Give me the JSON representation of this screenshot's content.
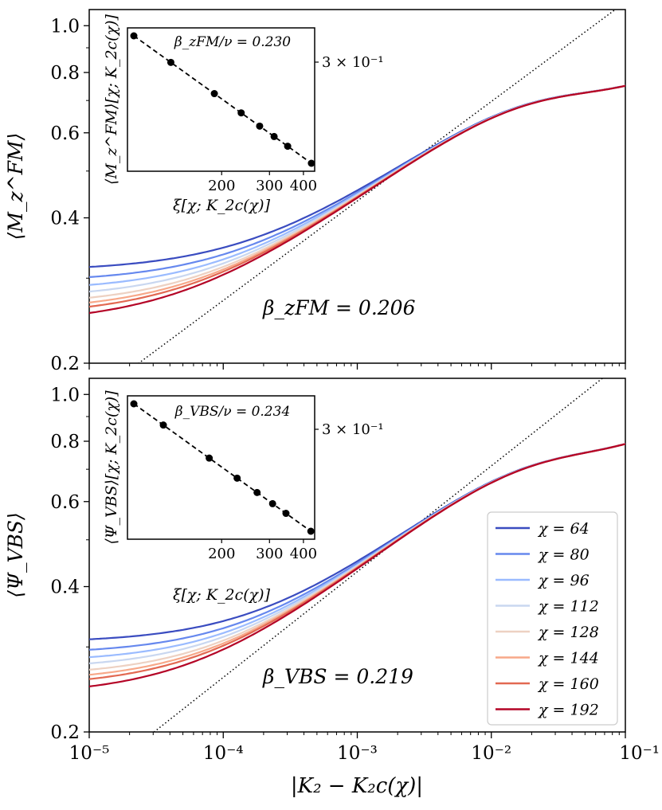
{
  "chart_data": [
    {
      "type": "line",
      "panel": "top",
      "ylabel": "⟨M_z^FM⟩",
      "xlabel": "",
      "xscale": "log",
      "yscale": "log",
      "xlim": [
        1e-05,
        0.1
      ],
      "ylim": [
        0.2,
        1.08
      ],
      "xticks": [
        1e-05,
        0.0001,
        0.001,
        0.01,
        0.1
      ],
      "yticks": [
        0.2,
        0.4,
        0.6,
        0.8,
        1.0
      ],
      "ytick_labels": [
        "0.2",
        "0.4",
        "0.6",
        "0.8",
        "1.0"
      ],
      "annotation": "β_zFM = 0.206",
      "fit_line": {
        "style": "dotted",
        "beta": 0.206,
        "point": [
          0.002,
          0.5
        ]
      },
      "series": [
        {
          "name": "χ = 64",
          "plateau": 0.31
        },
        {
          "name": "χ = 80",
          "plateau": 0.294
        },
        {
          "name": "χ = 96",
          "plateau": 0.282
        },
        {
          "name": "χ = 112",
          "plateau": 0.272
        },
        {
          "name": "χ = 128",
          "plateau": 0.263
        },
        {
          "name": "χ = 144",
          "plateau": 0.256
        },
        {
          "name": "χ = 160",
          "plateau": 0.25
        },
        {
          "name": "χ = 192",
          "plateau": 0.241
        }
      ],
      "inset": {
        "type": "scatter",
        "title": "β_zFM/ν = 0.230",
        "xlabel": "ξ[χ; K_2c(χ)]",
        "ylabel": "⟨M_z^FM⟩[χ; K_2c(χ)]",
        "xticks": [
          200,
          300,
          400
        ],
        "xtick_labels": [
          "200",
          "300",
          "400"
        ],
        "ytick_label": "3 × 10⁻¹",
        "x": [
          95,
          130,
          188,
          236,
          276,
          312,
          350,
          428
        ],
        "fit_style": "dashed"
      }
    },
    {
      "type": "line",
      "panel": "bottom",
      "ylabel": "⟨Ψ_VBS⟩",
      "xlabel": "|K₂ − K₂c(χ)|",
      "xscale": "log",
      "yscale": "log",
      "xlim": [
        1e-05,
        0.1
      ],
      "ylim": [
        0.2,
        1.08
      ],
      "xticks": [
        1e-05,
        0.0001,
        0.001,
        0.01,
        0.1
      ],
      "xtick_labels": [
        "10⁻⁵",
        "10⁻⁴",
        "10⁻³",
        "10⁻²",
        "10⁻¹"
      ],
      "yticks": [
        0.2,
        0.4,
        0.6,
        0.8,
        1.0
      ],
      "ytick_labels": [
        "0.2",
        "0.4",
        "0.6",
        "0.8",
        "1.0"
      ],
      "annotation": "β_VBS = 0.219",
      "fit_line": {
        "style": "dotted",
        "beta": 0.219,
        "point": [
          0.002,
          0.5
        ]
      },
      "series": [
        {
          "name": "χ = 64",
          "plateau": 0.306
        },
        {
          "name": "χ = 80",
          "plateau": 0.29
        },
        {
          "name": "χ = 96",
          "plateau": 0.279
        },
        {
          "name": "χ = 112",
          "plateau": 0.27
        },
        {
          "name": "χ = 128",
          "plateau": 0.261
        },
        {
          "name": "χ = 144",
          "plateau": 0.254
        },
        {
          "name": "χ = 160",
          "plateau": 0.248
        },
        {
          "name": "χ = 192",
          "plateau": 0.238
        }
      ],
      "inset": {
        "type": "scatter",
        "title": "β_VBS/ν = 0.234",
        "xlabel": "ξ[χ; K_2c(χ)]",
        "ylabel": "⟨Ψ_VBS⟩[χ; K_2c(χ)]",
        "xticks": [
          200,
          300,
          400
        ],
        "xtick_labels": [
          "200",
          "300",
          "400"
        ],
        "ytick_label": "3 × 10⁻¹",
        "x": [
          95,
          122,
          180,
          228,
          270,
          308,
          345,
          426
        ],
        "fit_style": "dashed"
      }
    }
  ],
  "legend": {
    "placement": "lower-right of bottom panel",
    "entries": [
      "χ = 64",
      "χ = 80",
      "χ = 96",
      "χ = 112",
      "χ = 128",
      "χ = 144",
      "χ = 160",
      "χ = 192"
    ],
    "colors": [
      "#3a4cc0",
      "#6688ee",
      "#9abbff",
      "#c9d7f0",
      "#edd1c2",
      "#f7a889",
      "#e26952",
      "#b40426"
    ]
  }
}
